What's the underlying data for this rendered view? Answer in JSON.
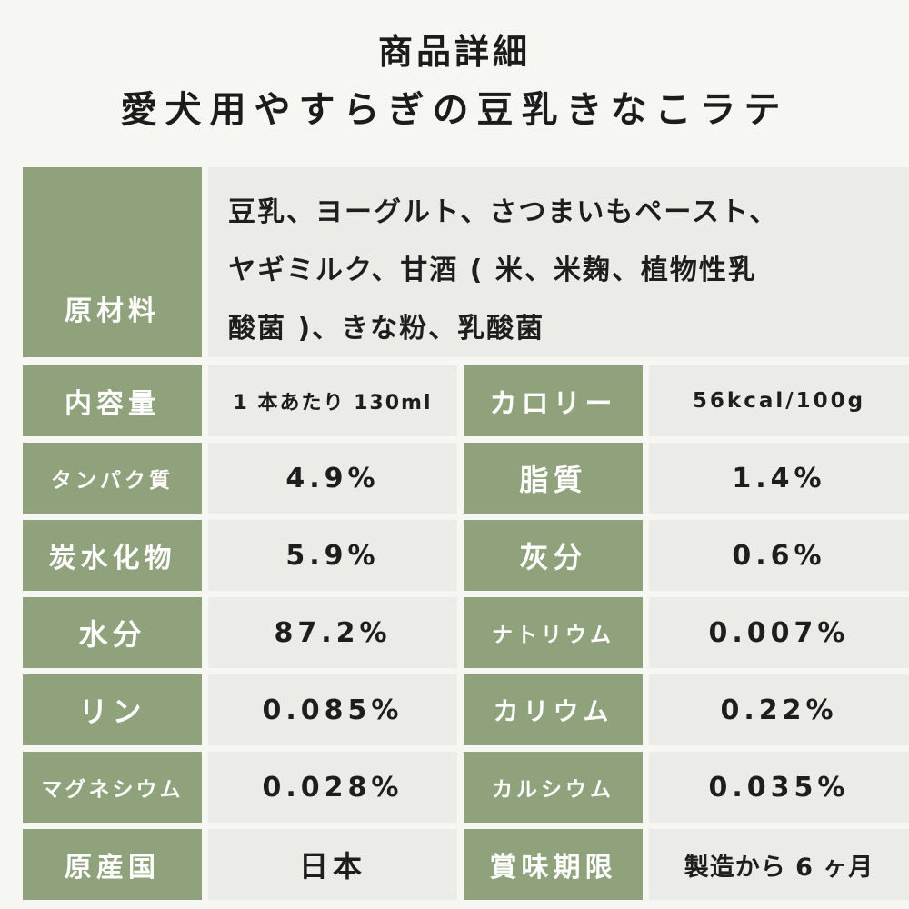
{
  "header": {
    "subtitle": "商品詳細",
    "title": "愛犬用やすらぎの豆乳きなこラテ"
  },
  "ingredients": {
    "label": "原材料",
    "lines": [
      "豆乳、ヨーグルト、さつまいもペースト、",
      "ヤギミルク、甘酒 ( 米、米麹、植物性乳",
      "酸菌 )、きな粉、乳酸菌"
    ]
  },
  "rows": [
    {
      "left_label": "内容量",
      "left_value": "1 本あたり 130ml",
      "right_label": "カロリー",
      "right_value": "56kcal/100g"
    },
    {
      "left_label": "タンパク質",
      "left_value": "4.9%",
      "right_label": "脂質",
      "right_value": "1.4%"
    },
    {
      "left_label": "炭水化物",
      "left_value": "5.9%",
      "right_label": "灰分",
      "right_value": "0.6%"
    },
    {
      "left_label": "水分",
      "left_value": "87.2%",
      "right_label": "ナトリウム",
      "right_value": "0.007%"
    },
    {
      "left_label": "リン",
      "left_value": "0.085%",
      "right_label": "カリウム",
      "right_value": "0.22%"
    },
    {
      "left_label": "マグネシウム",
      "left_value": "0.028%",
      "right_label": "カルシウム",
      "right_value": "0.035%"
    },
    {
      "left_label": "原産国",
      "left_value": "日本",
      "right_label": "賞味期限",
      "right_value": "製造から 6 ヶ月"
    }
  ],
  "colors": {
    "label_bg": "#8fa27b",
    "value_bg": "#ebebe7",
    "page_bg": "#f6f6f2",
    "text": "#1e1e1e"
  }
}
